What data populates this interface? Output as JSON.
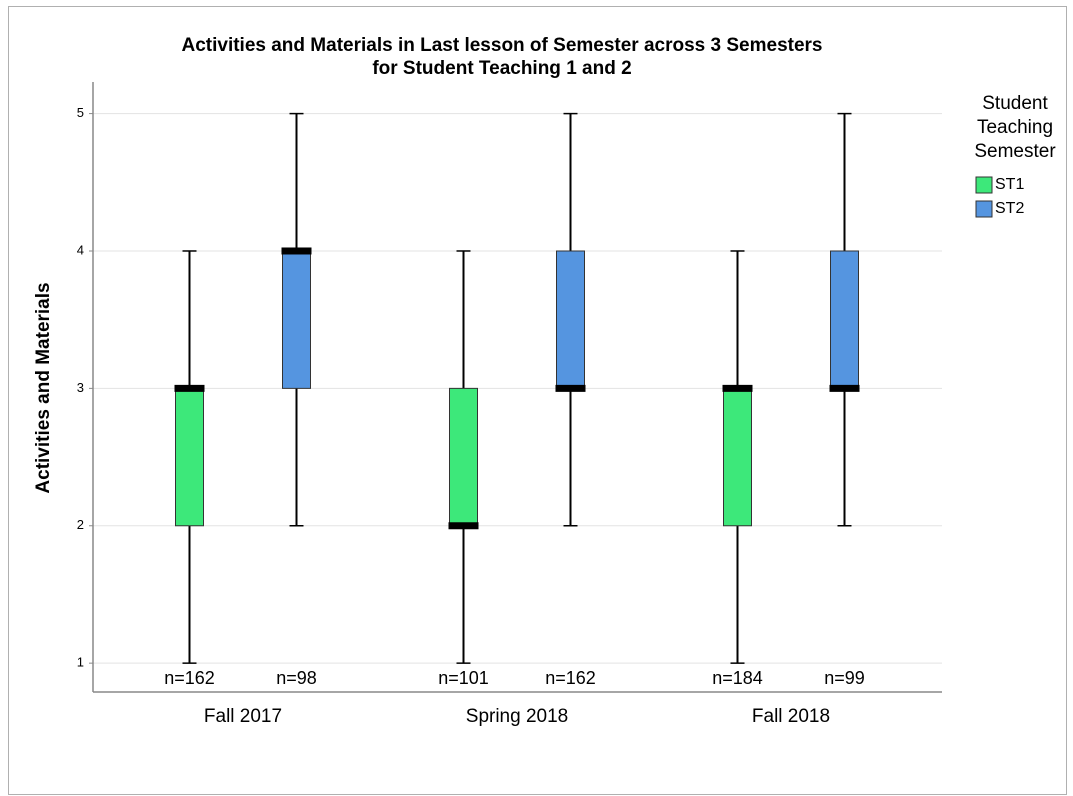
{
  "chart_data": {
    "type": "box",
    "title": [
      "Activities and Materials in Last lesson of Semester across 3 Semesters",
      "for Student Teaching 1 and 2"
    ],
    "ylabel": "Activities and Materials",
    "categories": [
      "Fall 2017",
      "Spring 2018",
      "Fall 2018"
    ],
    "legend_title": [
      "Student",
      "Teaching",
      "Semester"
    ],
    "legend": "right",
    "grid": true,
    "ylim": [
      0.79,
      5.23
    ],
    "yticks": [
      1,
      2,
      3,
      4,
      5
    ],
    "series": [
      {
        "name": "ST1",
        "color": "#3de87a",
        "boxes": [
          {
            "min": 1,
            "q1": 2,
            "median": 3,
            "q3": 3,
            "max": 4
          },
          {
            "min": 1,
            "q1": 2,
            "median": 2,
            "q3": 3,
            "max": 4
          },
          {
            "min": 1,
            "q1": 2,
            "median": 3,
            "q3": 3,
            "max": 4
          }
        ],
        "n_labels": [
          "n=162",
          "n=101",
          "n=184"
        ]
      },
      {
        "name": "ST2",
        "color": "#5595e0",
        "boxes": [
          {
            "min": 2,
            "q1": 3,
            "median": 4,
            "q3": 4,
            "max": 5
          },
          {
            "min": 2,
            "q1": 3,
            "median": 3,
            "q3": 4,
            "max": 5
          },
          {
            "min": 2,
            "q1": 3,
            "median": 3,
            "q3": 4,
            "max": 5
          }
        ],
        "n_labels": [
          "n=98",
          "n=162",
          "n=99"
        ]
      }
    ]
  }
}
